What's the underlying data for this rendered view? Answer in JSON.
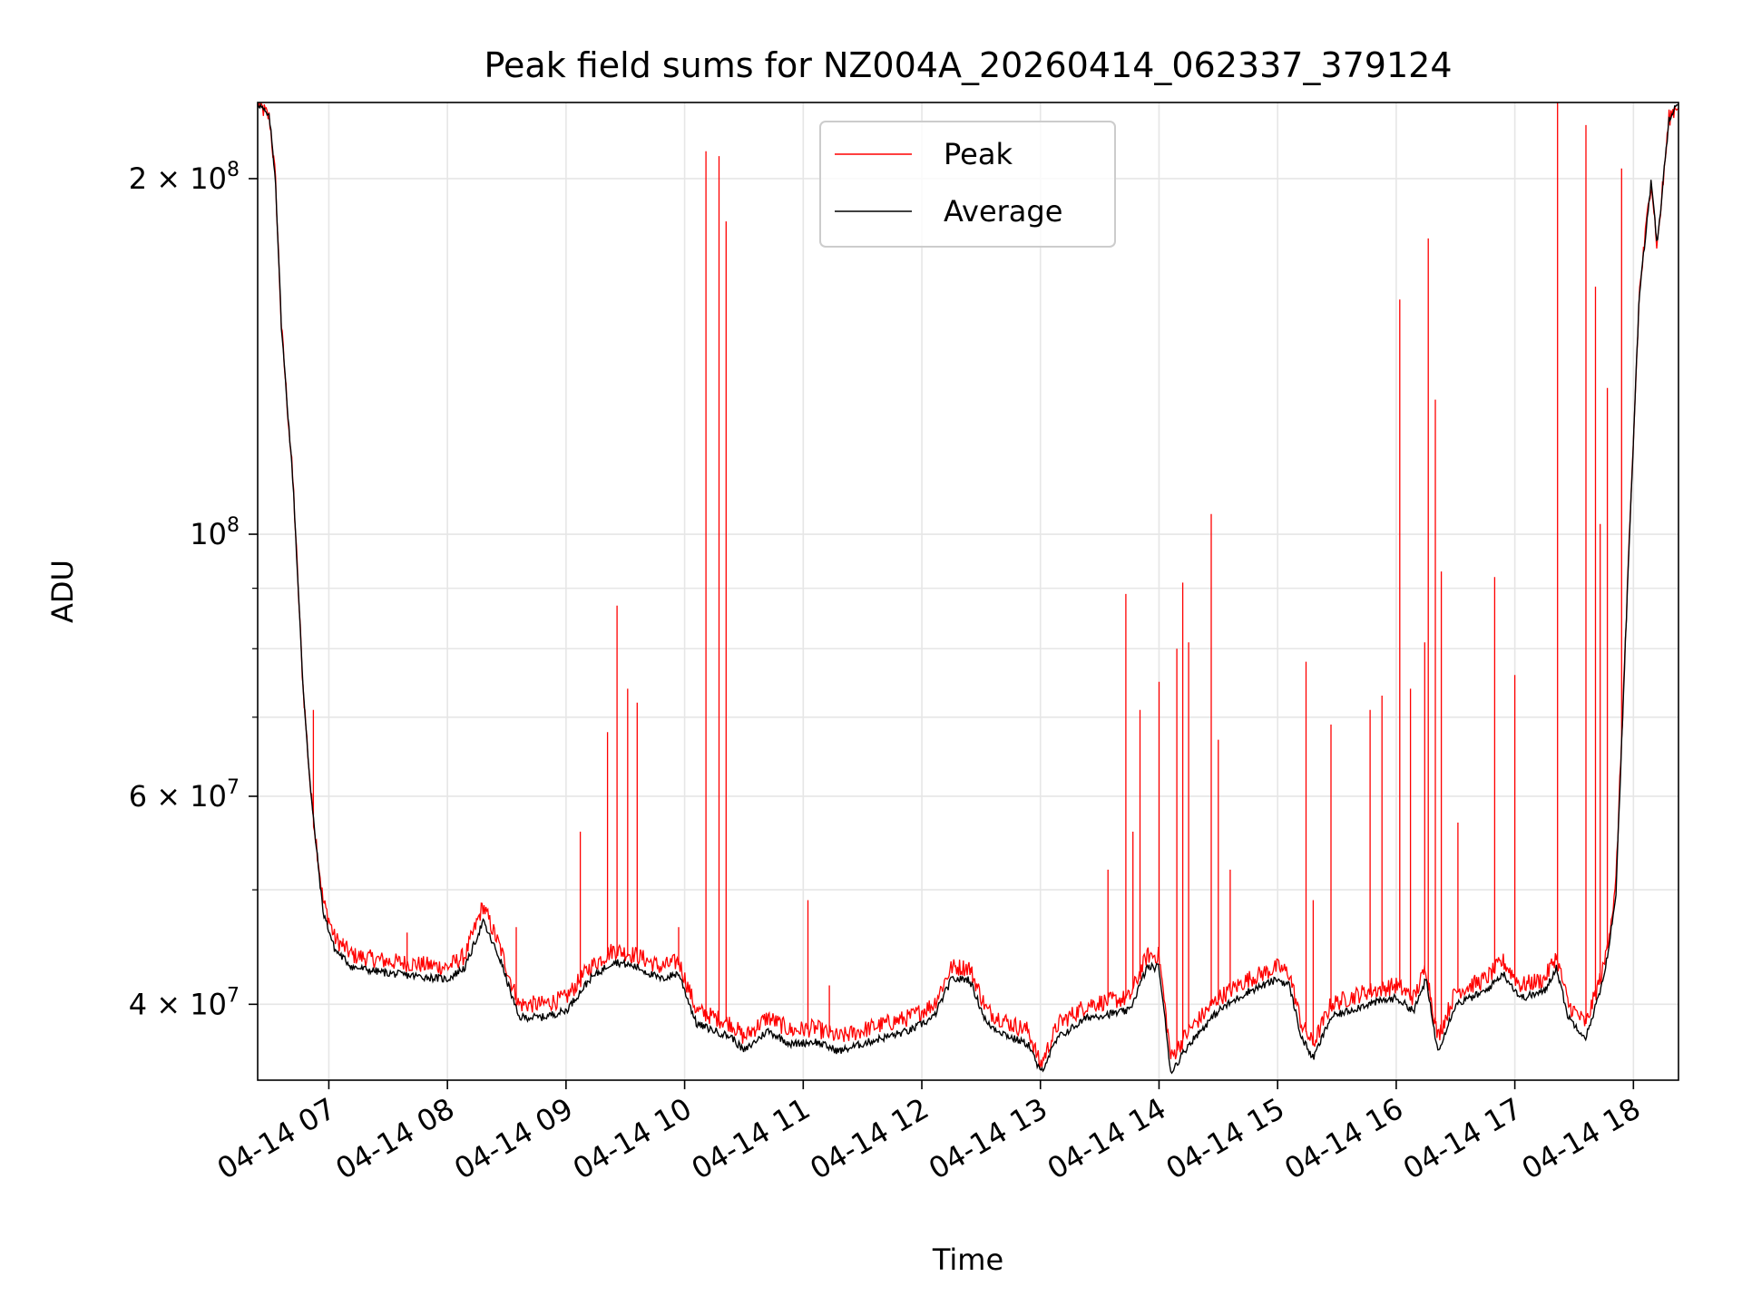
{
  "chart_data": {
    "type": "line",
    "title": "Peak field sums for NZ004A_20260414_062337_379124",
    "xlabel": "Time",
    "ylabel": "ADU",
    "yscale": "log",
    "grid": true,
    "legend_position": "top-center",
    "xlim_hours": [
      6.4,
      18.38
    ],
    "ylim": [
      34500000,
      232000000
    ],
    "x_ticks": [
      {
        "hour": 7,
        "label": "04-14 07"
      },
      {
        "hour": 8,
        "label": "04-14 08"
      },
      {
        "hour": 9,
        "label": "04-14 09"
      },
      {
        "hour": 10,
        "label": "04-14 10"
      },
      {
        "hour": 11,
        "label": "04-14 11"
      },
      {
        "hour": 12,
        "label": "04-14 12"
      },
      {
        "hour": 13,
        "label": "04-14 13"
      },
      {
        "hour": 14,
        "label": "04-14 14"
      },
      {
        "hour": 15,
        "label": "04-14 15"
      },
      {
        "hour": 16,
        "label": "04-14 16"
      },
      {
        "hour": 17,
        "label": "04-14 17"
      },
      {
        "hour": 18,
        "label": "04-14 18"
      }
    ],
    "y_ticks_major": [
      {
        "value": 40000000,
        "base": "4 × 10",
        "exp": "7"
      },
      {
        "value": 60000000,
        "base": "6 × 10",
        "exp": "7"
      },
      {
        "value": 100000000,
        "base": "10",
        "exp": "8"
      },
      {
        "value": 200000000,
        "base": "2 × 10",
        "exp": "8"
      }
    ],
    "y_ticks_minor": [
      50000000,
      70000000,
      80000000,
      90000000
    ],
    "series": [
      {
        "name": "Peak",
        "color": "#ff0000",
        "baseline": [
          [
            6.4,
            232000000
          ],
          [
            6.5,
            225000000
          ],
          [
            6.55,
            200000000
          ],
          [
            6.6,
            150000000
          ],
          [
            6.7,
            110000000
          ],
          [
            6.78,
            75000000
          ],
          [
            6.85,
            60000000
          ],
          [
            6.95,
            49000000
          ],
          [
            7.05,
            45500000
          ],
          [
            7.2,
            44000000
          ],
          [
            7.5,
            43500000
          ],
          [
            8.0,
            43000000
          ],
          [
            8.15,
            44000000
          ],
          [
            8.3,
            48500000
          ],
          [
            8.45,
            44500000
          ],
          [
            8.6,
            40000000
          ],
          [
            8.8,
            40000000
          ],
          [
            9.0,
            40500000
          ],
          [
            9.2,
            43000000
          ],
          [
            9.4,
            44500000
          ],
          [
            9.6,
            44000000
          ],
          [
            9.8,
            43000000
          ],
          [
            9.95,
            43500000
          ],
          [
            10.1,
            39500000
          ],
          [
            10.4,
            38500000
          ],
          [
            10.5,
            37500000
          ],
          [
            10.7,
            39000000
          ],
          [
            10.9,
            38000000
          ],
          [
            11.1,
            38200000
          ],
          [
            11.3,
            37500000
          ],
          [
            11.6,
            38300000
          ],
          [
            11.9,
            39000000
          ],
          [
            12.1,
            40000000
          ],
          [
            12.25,
            43000000
          ],
          [
            12.4,
            43000000
          ],
          [
            12.55,
            39500000
          ],
          [
            12.75,
            38500000
          ],
          [
            12.9,
            38000000
          ],
          [
            13.0,
            35500000
          ],
          [
            13.15,
            38500000
          ],
          [
            13.4,
            40000000
          ],
          [
            13.75,
            40500000
          ],
          [
            13.9,
            44000000
          ],
          [
            14.0,
            44000000
          ],
          [
            14.1,
            36000000
          ],
          [
            14.25,
            38000000
          ],
          [
            14.5,
            40500000
          ],
          [
            14.75,
            42000000
          ],
          [
            15.0,
            43000000
          ],
          [
            15.1,
            42500000
          ],
          [
            15.2,
            38500000
          ],
          [
            15.3,
            37000000
          ],
          [
            15.45,
            40000000
          ],
          [
            15.75,
            41000000
          ],
          [
            16.0,
            41500000
          ],
          [
            16.15,
            40500000
          ],
          [
            16.25,
            43000000
          ],
          [
            16.35,
            37500000
          ],
          [
            16.5,
            41000000
          ],
          [
            16.75,
            42000000
          ],
          [
            16.9,
            43500000
          ],
          [
            17.05,
            41500000
          ],
          [
            17.25,
            42000000
          ],
          [
            17.35,
            44000000
          ],
          [
            17.45,
            40000000
          ],
          [
            17.6,
            38500000
          ],
          [
            17.75,
            43000000
          ],
          [
            17.85,
            50000000
          ],
          [
            17.95,
            90000000
          ],
          [
            18.05,
            160000000
          ],
          [
            18.15,
            200000000
          ],
          [
            18.2,
            175000000
          ],
          [
            18.3,
            225000000
          ],
          [
            18.38,
            232000000
          ]
        ],
        "spikes": [
          {
            "t": 6.87,
            "v": 71000000
          },
          {
            "t": 7.12,
            "v": 45500000
          },
          {
            "t": 7.66,
            "v": 46000000
          },
          {
            "t": 8.58,
            "v": 46500000
          },
          {
            "t": 9.12,
            "v": 56000000
          },
          {
            "t": 9.35,
            "v": 68000000
          },
          {
            "t": 9.43,
            "v": 87000000
          },
          {
            "t": 9.52,
            "v": 74000000
          },
          {
            "t": 9.6,
            "v": 72000000
          },
          {
            "t": 9.95,
            "v": 46500000
          },
          {
            "t": 10.18,
            "v": 211000000
          },
          {
            "t": 10.29,
            "v": 209000000
          },
          {
            "t": 10.35,
            "v": 184000000
          },
          {
            "t": 11.04,
            "v": 49000000
          },
          {
            "t": 11.22,
            "v": 41500000
          },
          {
            "t": 12.42,
            "v": 43000000
          },
          {
            "t": 13.57,
            "v": 52000000
          },
          {
            "t": 13.72,
            "v": 89000000
          },
          {
            "t": 13.78,
            "v": 56000000
          },
          {
            "t": 13.84,
            "v": 71000000
          },
          {
            "t": 14.0,
            "v": 75000000
          },
          {
            "t": 14.15,
            "v": 80000000
          },
          {
            "t": 14.2,
            "v": 91000000
          },
          {
            "t": 14.25,
            "v": 81000000
          },
          {
            "t": 14.44,
            "v": 104000000
          },
          {
            "t": 14.5,
            "v": 67000000
          },
          {
            "t": 14.6,
            "v": 52000000
          },
          {
            "t": 15.24,
            "v": 78000000
          },
          {
            "t": 15.3,
            "v": 49000000
          },
          {
            "t": 15.45,
            "v": 69000000
          },
          {
            "t": 15.78,
            "v": 71000000
          },
          {
            "t": 15.88,
            "v": 73000000
          },
          {
            "t": 16.03,
            "v": 158000000
          },
          {
            "t": 16.12,
            "v": 74000000
          },
          {
            "t": 16.24,
            "v": 81000000
          },
          {
            "t": 16.27,
            "v": 178000000
          },
          {
            "t": 16.33,
            "v": 130000000
          },
          {
            "t": 16.38,
            "v": 93000000
          },
          {
            "t": 16.52,
            "v": 57000000
          },
          {
            "t": 16.83,
            "v": 92000000
          },
          {
            "t": 17.0,
            "v": 76000000
          },
          {
            "t": 17.36,
            "v": 232000000
          },
          {
            "t": 17.6,
            "v": 222000000
          },
          {
            "t": 17.68,
            "v": 162000000
          },
          {
            "t": 17.72,
            "v": 102000000
          },
          {
            "t": 17.78,
            "v": 133000000
          },
          {
            "t": 17.9,
            "v": 204000000
          }
        ]
      },
      {
        "name": "Average",
        "color": "#000000",
        "data": [
          [
            6.4,
            232000000
          ],
          [
            6.5,
            225000000
          ],
          [
            6.55,
            200000000
          ],
          [
            6.6,
            150000000
          ],
          [
            6.7,
            110000000
          ],
          [
            6.78,
            75000000
          ],
          [
            6.85,
            60000000
          ],
          [
            6.95,
            48000000
          ],
          [
            7.05,
            44500000
          ],
          [
            7.2,
            43000000
          ],
          [
            7.5,
            42500000
          ],
          [
            8.0,
            42000000
          ],
          [
            8.15,
            43000000
          ],
          [
            8.3,
            47000000
          ],
          [
            8.45,
            43500000
          ],
          [
            8.6,
            39000000
          ],
          [
            8.8,
            39000000
          ],
          [
            9.0,
            39500000
          ],
          [
            9.2,
            42000000
          ],
          [
            9.4,
            43500000
          ],
          [
            9.6,
            43000000
          ],
          [
            9.8,
            42000000
          ],
          [
            9.95,
            42500000
          ],
          [
            10.1,
            38500000
          ],
          [
            10.4,
            37500000
          ],
          [
            10.5,
            36500000
          ],
          [
            10.7,
            38000000
          ],
          [
            10.9,
            37000000
          ],
          [
            11.1,
            37200000
          ],
          [
            11.3,
            36500000
          ],
          [
            11.6,
            37300000
          ],
          [
            11.9,
            38000000
          ],
          [
            12.1,
            39000000
          ],
          [
            12.25,
            42000000
          ],
          [
            12.4,
            42000000
          ],
          [
            12.55,
            38500000
          ],
          [
            12.75,
            37500000
          ],
          [
            12.9,
            37000000
          ],
          [
            13.0,
            35000000
          ],
          [
            13.15,
            37500000
          ],
          [
            13.4,
            39000000
          ],
          [
            13.75,
            39500000
          ],
          [
            13.9,
            43000000
          ],
          [
            14.0,
            43000000
          ],
          [
            14.1,
            35000000
          ],
          [
            14.25,
            37000000
          ],
          [
            14.5,
            39500000
          ],
          [
            14.75,
            41000000
          ],
          [
            15.0,
            42000000
          ],
          [
            15.1,
            41500000
          ],
          [
            15.2,
            37500000
          ],
          [
            15.3,
            36000000
          ],
          [
            15.45,
            39000000
          ],
          [
            15.75,
            40000000
          ],
          [
            16.0,
            40500000
          ],
          [
            16.15,
            39500000
          ],
          [
            16.25,
            42000000
          ],
          [
            16.35,
            36500000
          ],
          [
            16.5,
            40000000
          ],
          [
            16.75,
            41000000
          ],
          [
            16.9,
            42500000
          ],
          [
            17.05,
            40500000
          ],
          [
            17.25,
            41000000
          ],
          [
            17.35,
            43000000
          ],
          [
            17.45,
            39000000
          ],
          [
            17.6,
            37500000
          ],
          [
            17.75,
            42000000
          ],
          [
            17.85,
            49000000
          ],
          [
            17.95,
            90000000
          ],
          [
            18.05,
            160000000
          ],
          [
            18.15,
            199000000
          ],
          [
            18.2,
            175000000
          ],
          [
            18.3,
            225000000
          ],
          [
            18.38,
            232000000
          ]
        ]
      }
    ]
  }
}
